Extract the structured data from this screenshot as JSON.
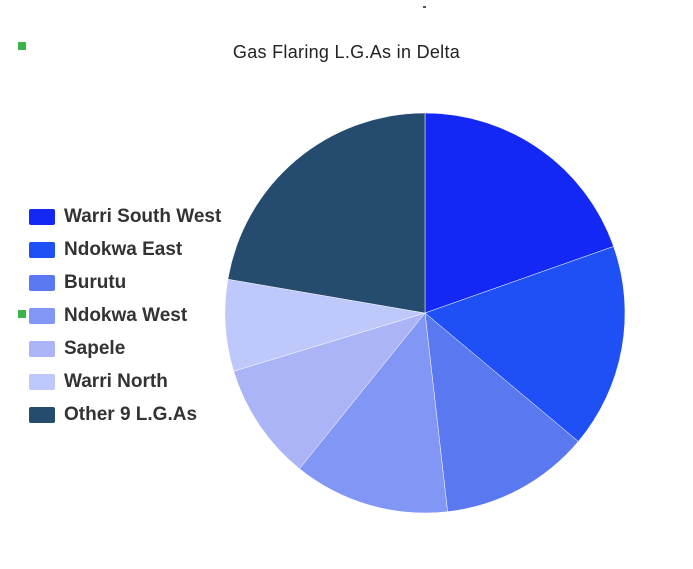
{
  "chart_data": {
    "type": "pie",
    "title": "Gas Flaring L.G.As in Delta",
    "legend_position": "left",
    "slices": [
      {
        "label": "Warri South West",
        "value": 19.6,
        "color": "#1428f5"
      },
      {
        "label": "Ndokwa East",
        "value": 16.5,
        "color": "#1e50f5"
      },
      {
        "label": "Burutu",
        "value": 12.1,
        "color": "#5a78f0"
      },
      {
        "label": "Ndokwa West",
        "value": 12.6,
        "color": "#8296f5"
      },
      {
        "label": "Sapele",
        "value": 9.5,
        "color": "#aab4f7"
      },
      {
        "label": "Warri North",
        "value": 7.4,
        "color": "#bec8fa"
      },
      {
        "label": "Other 9 L.G.As",
        "value": 22.3,
        "color": "#254c6e"
      }
    ]
  }
}
